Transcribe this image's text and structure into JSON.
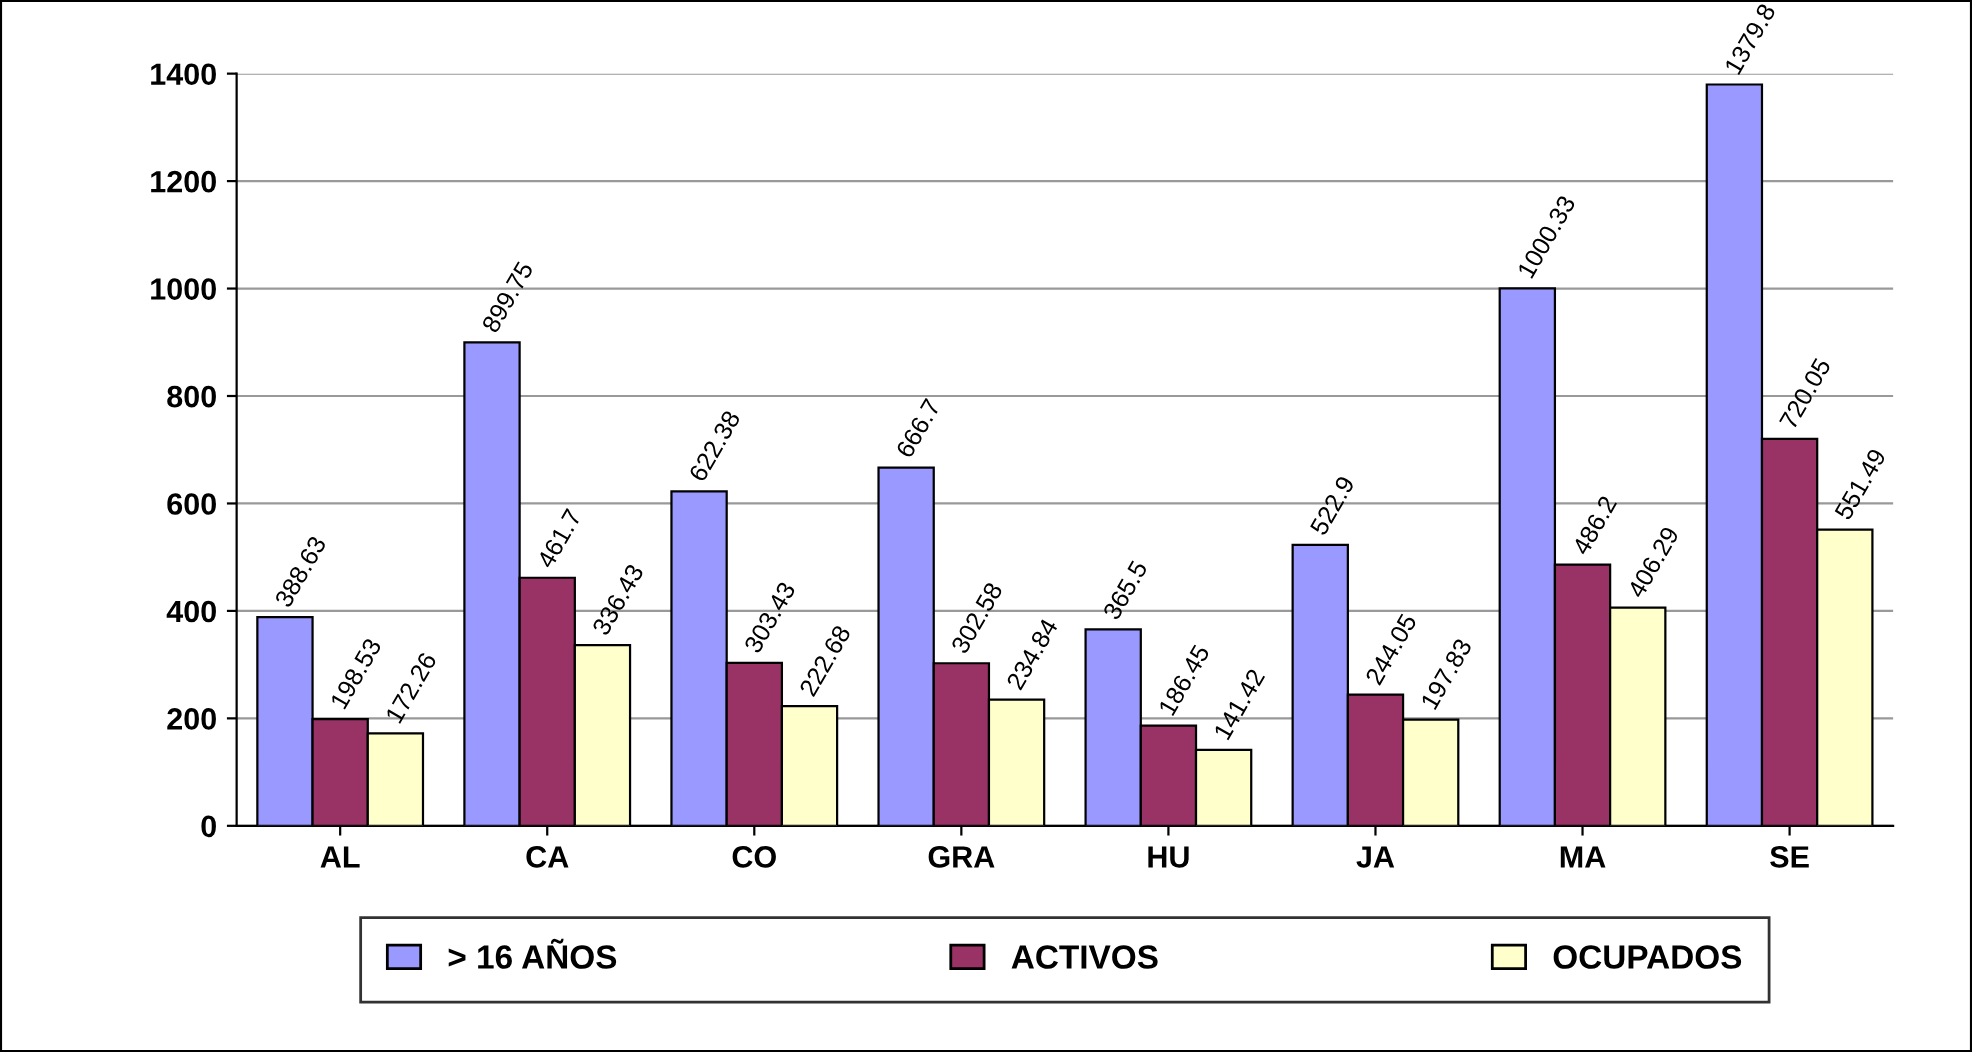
{
  "chart_data": {
    "type": "bar",
    "categories": [
      "AL",
      "CA",
      "CO",
      "GRA",
      "HU",
      "JA",
      "MA",
      "SE"
    ],
    "series": [
      {
        "name": "> 16 AÑOS",
        "color": "#9999ff",
        "values": [
          388.63,
          899.75,
          622.38,
          666.7,
          365.5,
          522.9,
          1000.33,
          1379.8
        ]
      },
      {
        "name": "ACTIVOS",
        "color": "#993366",
        "values": [
          198.53,
          461.7,
          303.43,
          302.58,
          186.45,
          244.05,
          486.2,
          720.05
        ]
      },
      {
        "name": "OCUPADOS",
        "color": "#ffffcc",
        "values": [
          172.26,
          336.43,
          222.68,
          234.84,
          141.42,
          197.83,
          406.29,
          551.49
        ]
      }
    ],
    "ylim": [
      0,
      1400
    ],
    "yticks": [
      0,
      200,
      400,
      600,
      800,
      1000,
      1200,
      1400
    ],
    "grid": "y",
    "legend": "bottom",
    "data_labels": true
  }
}
